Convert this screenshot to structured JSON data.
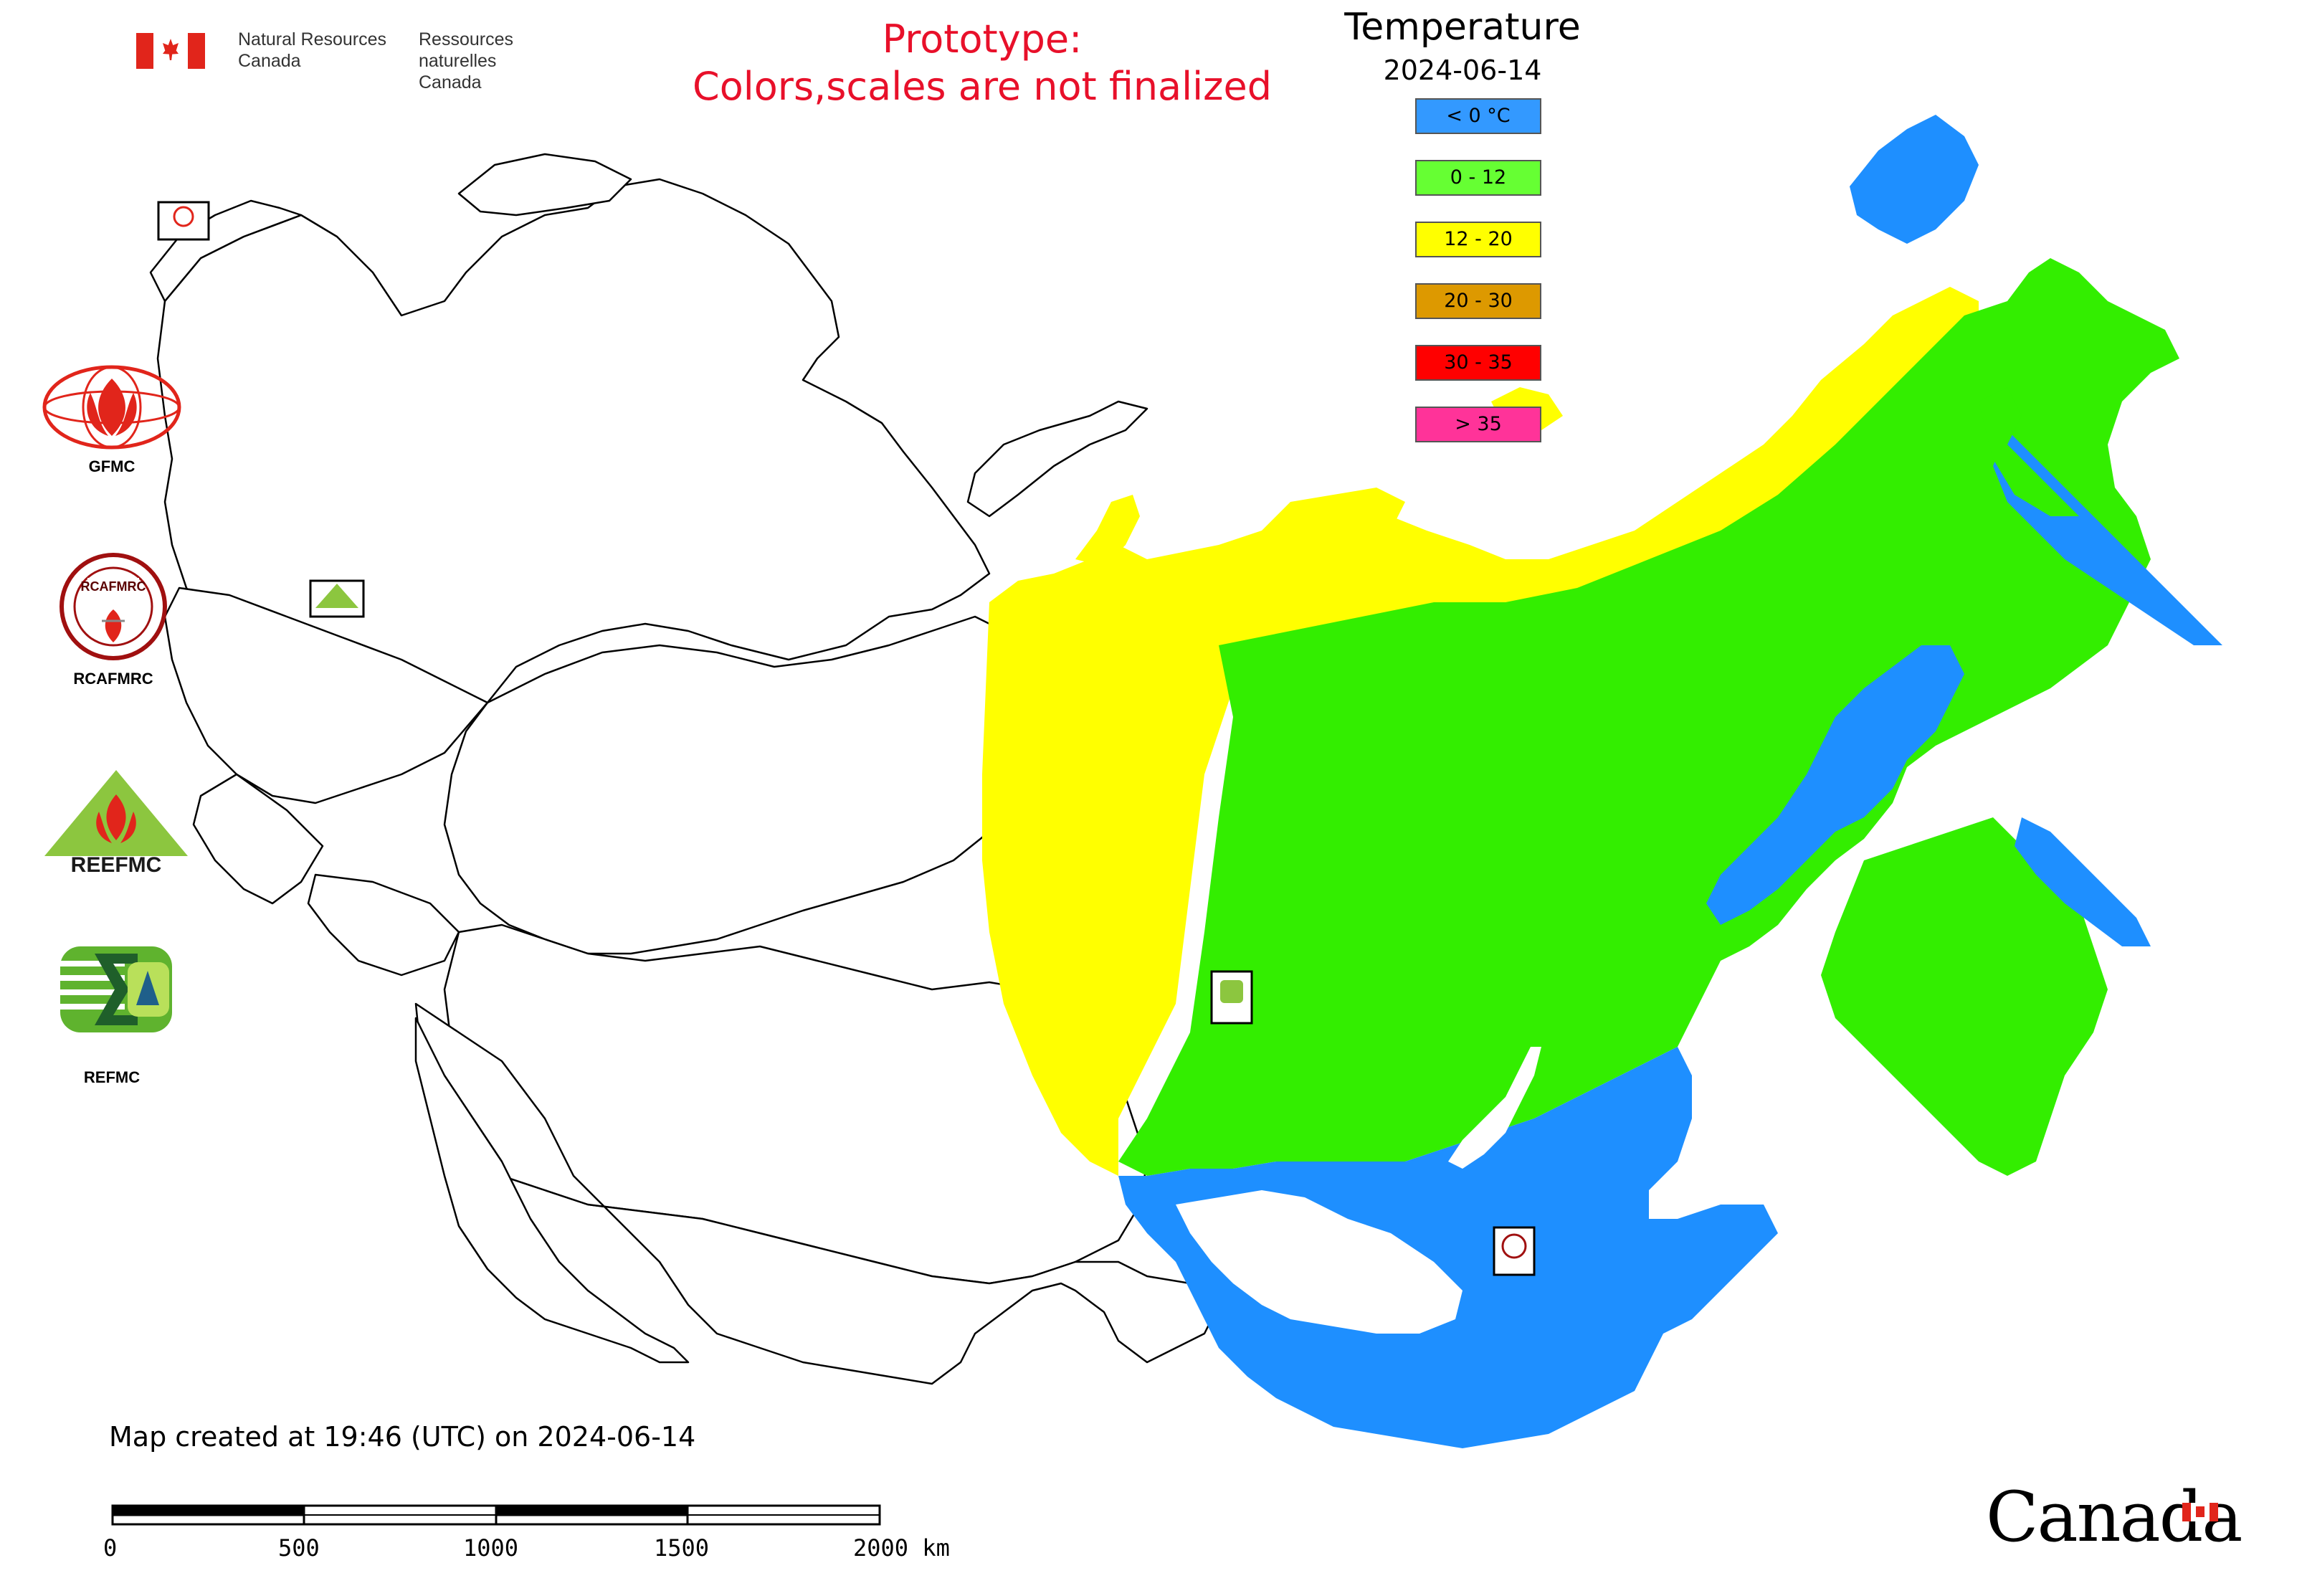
{
  "header": {
    "dept_en_line1": "Natural Resources",
    "dept_en_line2": "Canada",
    "dept_fr_line1": "Ressources naturelles",
    "dept_fr_line2": "Canada",
    "notice_line1": "Prototype:",
    "notice_line2": "Colors,scales are not finalized"
  },
  "legend": {
    "title": "Temperature",
    "date": "2024-06-14",
    "items": [
      {
        "label": "< 0 °C",
        "color": "#3399ff"
      },
      {
        "label": "0 - 12",
        "color": "#66ff33"
      },
      {
        "label": "12 - 20",
        "color": "#ffff00"
      },
      {
        "label": "20 - 30",
        "color": "#dd9900"
      },
      {
        "label": "30 - 35",
        "color": "#ff0000"
      },
      {
        "label": "> 35",
        "color": "#ff3399"
      }
    ]
  },
  "logos": {
    "gfmc": "GFMC",
    "rcafmrc": "RCAFMRC",
    "reefmc": "REEFMC",
    "refmc": "REFMC",
    "rcafmrc_ring_text": "RCAFMRC"
  },
  "map_markers": {
    "gfmc_small": "GFMC",
    "reefmc_small": "REEFMC",
    "refmc_small": "REFMC",
    "rcafmrc_small": "RCAFMRC"
  },
  "footer": {
    "created": "Map created at 19:46 (UTC) on 2024-06-14",
    "scale_labels": [
      "0",
      "500",
      "1000",
      "1500",
      "2000 km"
    ],
    "wordmark": "Canada"
  },
  "colors": {
    "cold": "#1e8fff",
    "mild": "#33ee00",
    "warm": "#ffff00",
    "snow": "#ffffff",
    "border": "#000000",
    "notice": "#e8102a",
    "flag_red": "#e1251b"
  }
}
